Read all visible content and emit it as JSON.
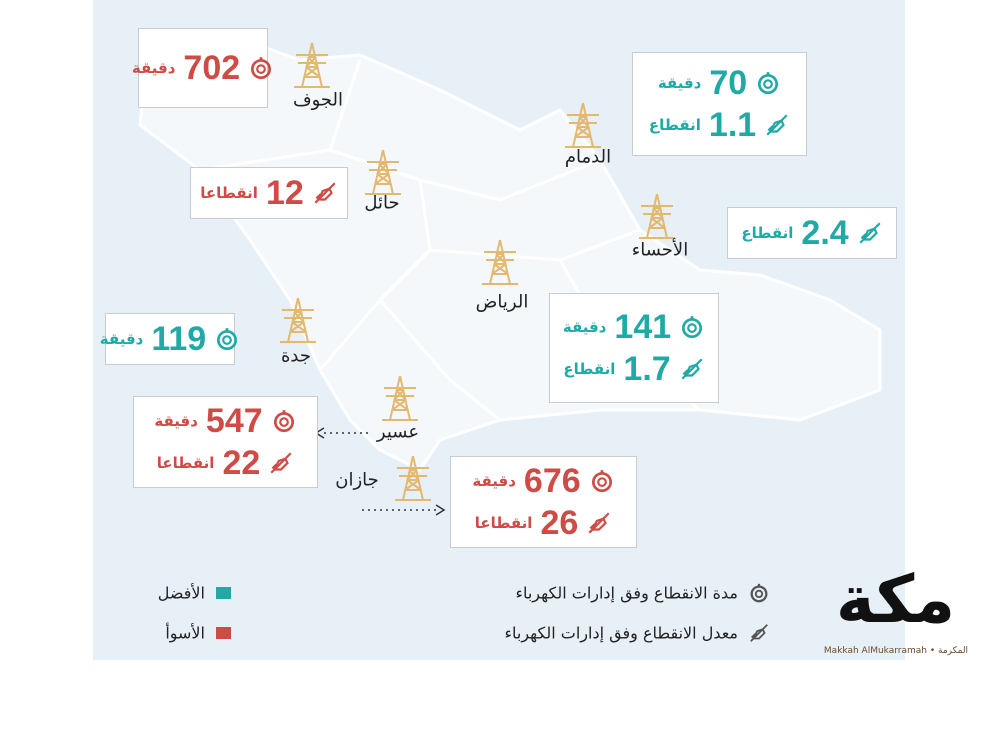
{
  "regions": [
    {
      "name": "الجوف",
      "color": "#cf4b45",
      "duration": {
        "value": 702,
        "unit": "دقيقة"
      }
    },
    {
      "name": "حائل",
      "color": "#cf4b45",
      "outages": {
        "value": 12,
        "unit": "انقطاعا"
      }
    },
    {
      "name": "الدمام",
      "color": "#21a9a6",
      "duration": {
        "value": 70,
        "unit": "دقيقة"
      },
      "outages": {
        "value": 1.1,
        "unit": "انقطاع"
      }
    },
    {
      "name": "الأحساء",
      "color": "#21a9a6",
      "outages": {
        "value": 2.4,
        "unit": "انقطاع"
      }
    },
    {
      "name": "الرياض",
      "color": "#21a9a6",
      "duration": {
        "value": 141,
        "unit": "دقيقة"
      },
      "outages": {
        "value": 1.7,
        "unit": "انقطاع"
      }
    },
    {
      "name": "جدة",
      "color": "#21a9a6",
      "duration": {
        "value": 119,
        "unit": "دقيقة"
      }
    },
    {
      "name": "عسير",
      "color": "#cf4b45",
      "duration": {
        "value": 547,
        "unit": "دقيقة"
      },
      "outages": {
        "value": 22,
        "unit": "انقطاعا"
      }
    },
    {
      "name": "جازان",
      "color": "#cf4b45",
      "duration": {
        "value": 676,
        "unit": "دقيقة"
      },
      "outages": {
        "value": 26,
        "unit": "انقطاعا"
      }
    }
  ],
  "legend": {
    "best": {
      "label": "الأفضل",
      "color": "#21a9a6"
    },
    "worst": {
      "label": "الأسوأ",
      "color": "#cf4b45"
    },
    "duration": "مدة الانقطاع وفق إدارات الكهرباء",
    "outages": "معدل الانقطاع وفق إدارات الكهرباء"
  },
  "logo": {
    "title": "مكة",
    "subtitle": "Makkah AlMukarramah • المكرمة"
  }
}
